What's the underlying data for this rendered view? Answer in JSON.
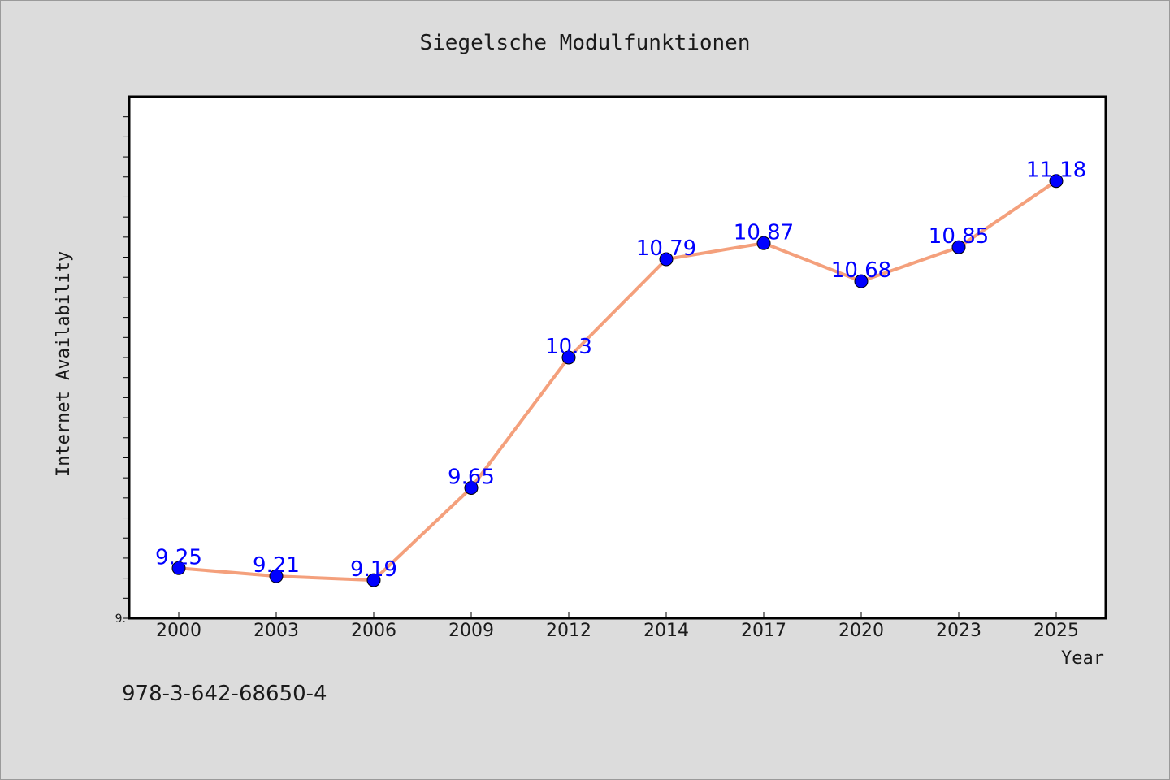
{
  "chart_data": {
    "type": "line",
    "title": "Siegelsche Modulfunktionen",
    "xlabel": "Year",
    "ylabel": "Internet Availability",
    "categories": [
      "2000",
      "2003",
      "2006",
      "2009",
      "2012",
      "2014",
      "2017",
      "2020",
      "2023",
      "2025"
    ],
    "series": [
      {
        "values": [
          9.25,
          9.21,
          9.19,
          9.65,
          10.3,
          10.79,
          10.87,
          10.68,
          10.85,
          11.18
        ],
        "labels": [
          "9.25",
          "9.21",
          "9.19",
          "9.65",
          "10.3",
          "10.79",
          "10.87",
          "10.68",
          "10.85",
          "11.18"
        ],
        "line_color": "#f4a07c",
        "marker_color": "#0000ff"
      }
    ],
    "ylim": [
      9.0,
      11.6
    ],
    "ytick_labels": [
      "9."
    ],
    "grid": false,
    "label_color": "#0000ff"
  },
  "footnote": "978-3-642-68650-4"
}
